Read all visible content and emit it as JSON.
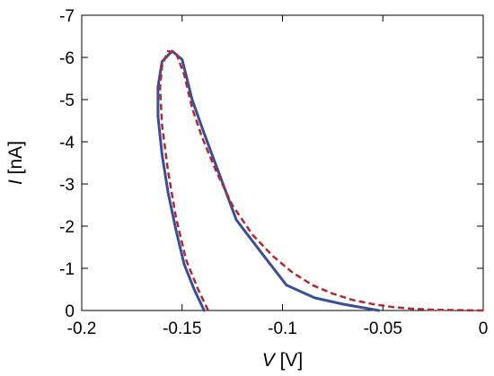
{
  "chart_data": {
    "type": "line",
    "xlabel": {
      "var": "V",
      "unit": "[V]"
    },
    "ylabel": {
      "var": "I",
      "unit": "[nA]"
    },
    "xlim": [
      -0.2,
      0
    ],
    "ylim": [
      0,
      -7
    ],
    "y_axis_inverted": true,
    "x_ticks": [
      -0.2,
      -0.15,
      -0.1,
      -0.05,
      0
    ],
    "x_tick_labels": [
      "-0.2",
      "-0.15",
      "-0.1",
      "-0.05",
      "0"
    ],
    "y_ticks": [
      0,
      -1,
      -2,
      -3,
      -4,
      -5,
      -6,
      -7
    ],
    "y_tick_labels": [
      "0",
      "-1",
      "-2",
      "-3",
      "-4",
      "-5",
      "-6",
      "-7"
    ],
    "grid": false,
    "series": [
      {
        "style": "solid",
        "color": "#3a4f97",
        "x": [
          -0.139,
          -0.144,
          -0.149,
          -0.153,
          -0.157,
          -0.16,
          -0.162,
          -0.162,
          -0.16,
          -0.155,
          -0.15,
          -0.145,
          -0.139,
          -0.132,
          -0.123,
          -0.111,
          -0.098,
          -0.084,
          -0.07,
          -0.058,
          -0.052
        ],
        "y": [
          0.0,
          -0.5,
          -1.1,
          -1.9,
          -2.8,
          -3.7,
          -4.6,
          -5.3,
          -5.9,
          -6.15,
          -5.95,
          -5.0,
          -4.2,
          -3.3,
          -2.15,
          -1.4,
          -0.6,
          -0.3,
          -0.15,
          -0.05,
          0.0
        ]
      },
      {
        "style": "dashed",
        "color": "#b02a36",
        "x": [
          -0.137,
          -0.142,
          -0.148,
          -0.153,
          -0.157,
          -0.16,
          -0.161,
          -0.16,
          -0.157,
          -0.153,
          -0.149,
          -0.145,
          -0.14,
          -0.133,
          -0.125,
          -0.115,
          -0.105,
          -0.095,
          -0.085,
          -0.075,
          -0.065,
          -0.055,
          -0.045,
          -0.035,
          -0.025,
          -0.015,
          0.0
        ],
        "y": [
          0.0,
          -0.5,
          -1.2,
          -2.2,
          -3.3,
          -4.4,
          -5.3,
          -5.8,
          -6.15,
          -6.1,
          -5.6,
          -4.8,
          -4.1,
          -3.3,
          -2.5,
          -1.8,
          -1.3,
          -0.9,
          -0.6,
          -0.4,
          -0.25,
          -0.15,
          -0.08,
          -0.04,
          -0.02,
          -0.01,
          0.0
        ]
      }
    ]
  }
}
